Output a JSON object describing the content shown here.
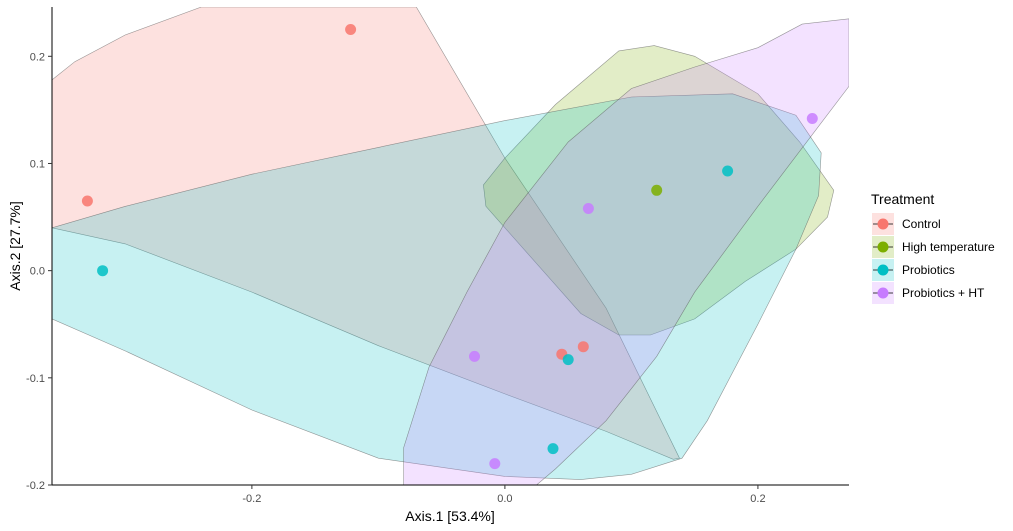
{
  "chart_data": {
    "type": "scatter",
    "xlabel": "Axis.1   [53.4%]",
    "ylabel": "Axis.2   [27.7%]",
    "xlim": [
      -0.358,
      0.272
    ],
    "ylim": [
      -0.2,
      0.246
    ],
    "x_ticks": [
      -0.2,
      0.0,
      0.2
    ],
    "x_tick_labels": [
      "-0.2",
      "0.0",
      "0.2"
    ],
    "y_ticks": [
      -0.2,
      -0.1,
      0.0,
      0.1,
      0.2
    ],
    "y_tick_labels": [
      "-0.2",
      "-0.1",
      "0.0",
      "0.1",
      "0.2"
    ],
    "grid": false,
    "legend": {
      "title": "Treatment",
      "position": "right"
    },
    "series": [
      {
        "name": "Control",
        "color": "#F8766D",
        "points": [
          {
            "x": -0.122,
            "y": 0.225
          },
          {
            "x": -0.33,
            "y": 0.065
          },
          {
            "x": 0.045,
            "y": -0.078
          },
          {
            "x": 0.062,
            "y": -0.071
          }
        ],
        "ellipse": [
          [
            -0.358,
            0.178
          ],
          [
            -0.34,
            0.195
          ],
          [
            -0.3,
            0.22
          ],
          [
            -0.24,
            0.246
          ],
          [
            -0.07,
            0.246
          ],
          [
            0.0,
            0.105
          ],
          [
            0.08,
            -0.035
          ],
          [
            0.138,
            -0.175
          ],
          [
            0.133,
            -0.176
          ],
          [
            0.08,
            -0.15
          ],
          [
            0.0,
            -0.115
          ],
          [
            -0.1,
            -0.07
          ],
          [
            -0.2,
            -0.02
          ],
          [
            -0.3,
            0.025
          ],
          [
            -0.358,
            0.04
          ]
        ]
      },
      {
        "name": "High temperature",
        "color": "#7CAE00",
        "points": [
          {
            "x": 0.12,
            "y": 0.075
          }
        ],
        "ellipse": [
          [
            -0.017,
            0.08
          ],
          [
            0.0,
            0.105
          ],
          [
            0.04,
            0.155
          ],
          [
            0.09,
            0.205
          ],
          [
            0.118,
            0.21
          ],
          [
            0.15,
            0.2
          ],
          [
            0.2,
            0.165
          ],
          [
            0.233,
            0.12
          ],
          [
            0.26,
            0.075
          ],
          [
            0.255,
            0.05
          ],
          [
            0.23,
            0.02
          ],
          [
            0.19,
            -0.01
          ],
          [
            0.15,
            -0.045
          ],
          [
            0.115,
            -0.06
          ],
          [
            0.09,
            -0.06
          ],
          [
            0.06,
            -0.04
          ],
          [
            0.03,
            0.0
          ],
          [
            0.0,
            0.04
          ],
          [
            -0.015,
            0.06
          ]
        ]
      },
      {
        "name": "Probiotics",
        "color": "#00BFC4",
        "points": [
          {
            "x": -0.318,
            "y": 0.0
          },
          {
            "x": 0.05,
            "y": -0.083
          },
          {
            "x": 0.038,
            "y": -0.166
          },
          {
            "x": 0.176,
            "y": 0.093
          }
        ],
        "ellipse": [
          [
            -0.358,
            0.04
          ],
          [
            -0.3,
            0.06
          ],
          [
            -0.2,
            0.09
          ],
          [
            -0.1,
            0.115
          ],
          [
            0.0,
            0.14
          ],
          [
            0.1,
            0.162
          ],
          [
            0.18,
            0.165
          ],
          [
            0.23,
            0.145
          ],
          [
            0.25,
            0.11
          ],
          [
            0.248,
            0.07
          ],
          [
            0.23,
            0.02
          ],
          [
            0.2,
            -0.05
          ],
          [
            0.16,
            -0.14
          ],
          [
            0.14,
            -0.175
          ],
          [
            0.1,
            -0.19
          ],
          [
            0.06,
            -0.195
          ],
          [
            0.0,
            -0.192
          ],
          [
            -0.1,
            -0.175
          ],
          [
            -0.2,
            -0.13
          ],
          [
            -0.3,
            -0.075
          ],
          [
            -0.358,
            -0.045
          ]
        ]
      },
      {
        "name": "Probiotics + HT",
        "color": "#C77CFF",
        "points": [
          {
            "x": 0.066,
            "y": 0.058
          },
          {
            "x": 0.243,
            "y": 0.142
          },
          {
            "x": -0.024,
            "y": -0.08
          },
          {
            "x": -0.008,
            "y": -0.18
          }
        ],
        "ellipse": [
          [
            -0.08,
            -0.2
          ],
          [
            -0.08,
            -0.165
          ],
          [
            -0.06,
            -0.09
          ],
          [
            -0.03,
            -0.02
          ],
          [
            0.0,
            0.045
          ],
          [
            0.05,
            0.12
          ],
          [
            0.1,
            0.17
          ],
          [
            0.15,
            0.19
          ],
          [
            0.2,
            0.208
          ],
          [
            0.235,
            0.23
          ],
          [
            0.272,
            0.235
          ],
          [
            0.272,
            0.172
          ],
          [
            0.245,
            0.13
          ],
          [
            0.2,
            0.06
          ],
          [
            0.15,
            -0.02
          ],
          [
            0.12,
            -0.08
          ],
          [
            0.08,
            -0.14
          ],
          [
            0.04,
            -0.185
          ],
          [
            0.025,
            -0.2
          ]
        ]
      }
    ]
  }
}
